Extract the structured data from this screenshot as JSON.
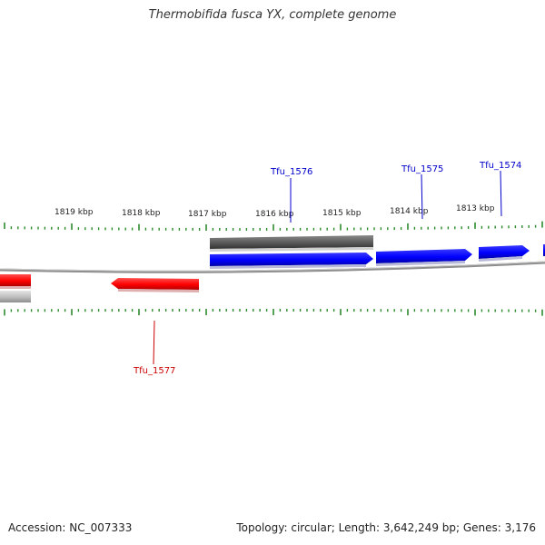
{
  "header": {
    "title": "Thermobifida fusca YX, complete genome"
  },
  "footer": {
    "accession": "Accession: NC_007333",
    "summary": "Topology: circular; Length: 3,642,249 bp; Genes: 3,176"
  },
  "scale_labels": [
    "1819 kbp",
    "1818 kbp",
    "1817 kbp",
    "1816 kbp",
    "1815 kbp",
    "1814 kbp",
    "1813 kbp"
  ],
  "gene_labels": [
    {
      "name": "Tfu_1576",
      "strand": "forward",
      "color": "#0000cc"
    },
    {
      "name": "Tfu_1575",
      "strand": "forward",
      "color": "#0000cc"
    },
    {
      "name": "Tfu_1574",
      "strand": "forward",
      "color": "#0000cc"
    },
    {
      "name": "Tfu_1577",
      "strand": "reverse",
      "color": "#cc0000"
    }
  ],
  "colors": {
    "forward_gene": "#0000ff",
    "reverse_gene": "#ff0000",
    "rna_feature": "#666666",
    "backbone": "#888888",
    "ticks": "#2e8b2e"
  }
}
